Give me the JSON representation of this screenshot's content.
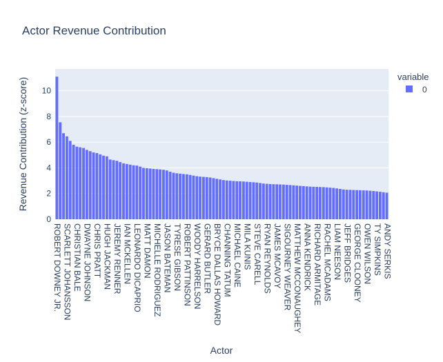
{
  "chart_data": {
    "type": "bar",
    "title": "Actor Revenue Contribution",
    "xlabel": "Actor",
    "ylabel": "Revenue Contribution (z-score)",
    "ylim": [
      0,
      11.7
    ],
    "yticks": [
      0,
      2,
      4,
      6,
      8,
      10
    ],
    "grid": true,
    "legend": {
      "title": "variable",
      "placement": "right",
      "entries": [
        "0"
      ]
    },
    "bar_color": "#636efa",
    "plot_background": "#e5ecf6",
    "categories": [
      "ROBERT DOWNEY JR.",
      "",
      "",
      "SCARLETT JOHANSSON",
      "",
      "",
      "CHRISTIAN BALE",
      "",
      "",
      "DWAYNE JOHNSON",
      "",
      "",
      "CHRIS PRATT",
      "",
      "",
      "HUGH JACKMAN",
      "",
      "",
      "JEREMY RENNER",
      "",
      "",
      "IAN MCKELLEN",
      "",
      "",
      "LEONARDO DICAPRIO",
      "",
      "",
      "MATT DAMON",
      "",
      "",
      "MICHELLE RODRIGUEZ",
      "",
      "",
      "JASON BATEMAN",
      "",
      "",
      "TYRESE GIBSON",
      "",
      "",
      "ROBERT PATTINSON",
      "",
      "",
      "WOODY HARRELSON",
      "",
      "",
      "GERARD BUTLER",
      "",
      "",
      "BRYCE DALLAS HOWARD",
      "",
      "",
      "CHANNING TATUM",
      "",
      "",
      "MICHAEL CAINE",
      "",
      "",
      "MILA KUNIS",
      "",
      "",
      "STEVE CARELL",
      "",
      "",
      "RYAN REYNOLDS",
      "",
      "",
      "JAMES MCAVOY",
      "",
      "",
      "SIGOURNEY WEAVER",
      "",
      "",
      "MATTHEW MCCONAUGHEY",
      "",
      "",
      "ANNA KENDRICK",
      "",
      "",
      "RICHARD ARMITAGE",
      "",
      "",
      "RACHEL MCADAMS",
      "",
      "",
      "LIAM NEESON",
      "",
      "",
      "JEFF BRIDGES",
      "",
      "",
      "GEORGE CLOONEY",
      "",
      "",
      "OWEN WILSON",
      "",
      "",
      "TY SIMPKINS",
      "",
      "",
      "ANDY SERKIS"
    ],
    "series": [
      {
        "values": [
          11.1,
          7.55,
          6.7,
          6.45,
          6.1,
          5.8,
          5.65,
          5.6,
          5.55,
          5.4,
          5.3,
          5.2,
          5.15,
          5.05,
          4.95,
          4.9,
          4.65,
          4.6,
          4.55,
          4.45,
          4.35,
          4.3,
          4.25,
          4.2,
          4.18,
          4.1,
          4.0,
          3.98,
          3.95,
          3.92,
          3.9,
          3.88,
          3.85,
          3.8,
          3.7,
          3.62,
          3.58,
          3.55,
          3.52,
          3.5,
          3.45,
          3.4,
          3.35,
          3.32,
          3.3,
          3.28,
          3.25,
          3.2,
          3.15,
          3.1,
          3.05,
          3.02,
          3.0,
          2.98,
          2.96,
          2.95,
          2.94,
          2.92,
          2.9,
          2.88,
          2.86,
          2.82,
          2.78,
          2.76,
          2.74,
          2.73,
          2.72,
          2.71,
          2.7,
          2.68,
          2.66,
          2.64,
          2.62,
          2.6,
          2.58,
          2.56,
          2.54,
          2.53,
          2.52,
          2.51,
          2.5,
          2.48,
          2.46,
          2.44,
          2.4,
          2.36,
          2.32,
          2.3,
          2.29,
          2.28,
          2.27,
          2.26,
          2.25,
          2.24,
          2.22,
          2.2,
          2.17,
          2.14,
          2.1,
          2.07
        ]
      }
    ]
  }
}
